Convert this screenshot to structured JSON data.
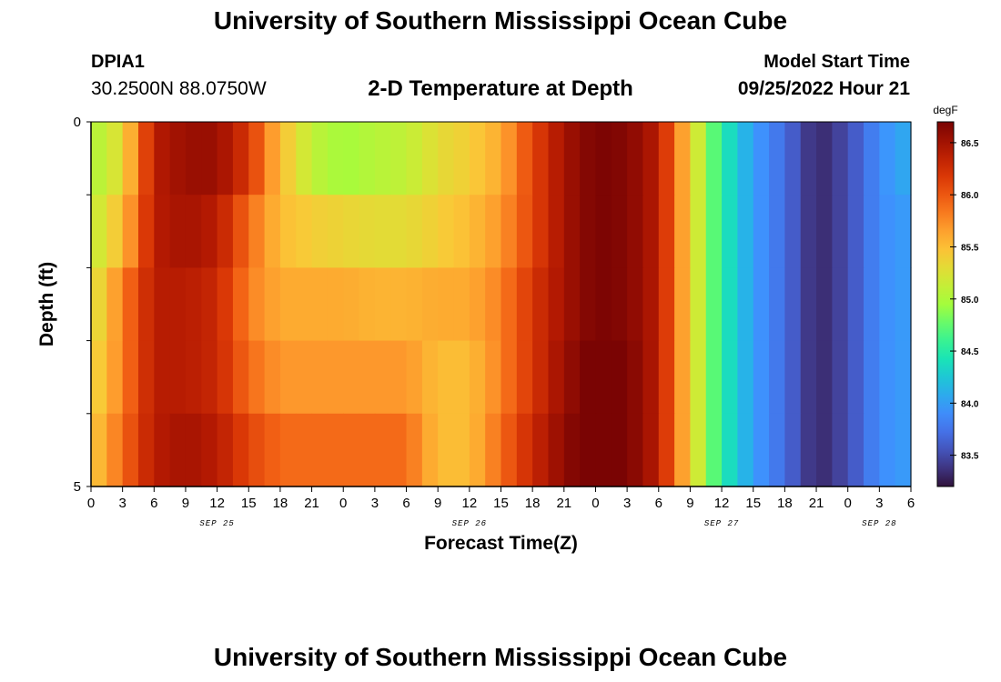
{
  "header": {
    "title": "University of Southern Mississippi Ocean Cube",
    "station_id": "DPIA1",
    "coordinates": "30.2500N  88.0750W",
    "subtitle": "2-D Temperature at Depth",
    "start_label": "Model Start Time",
    "start_value": "09/25/2022 Hour 21"
  },
  "footer": {
    "title": "University of Southern Mississippi Ocean Cube"
  },
  "chart_data": {
    "type": "heatmap",
    "title": "2-D Temperature at Depth",
    "xlabel": "Forecast Time(Z)",
    "ylabel": "Depth (ft)",
    "colorbar_label": "degF",
    "x_tick_labels": [
      "0",
      "3",
      "6",
      "9",
      "12",
      "15",
      "18",
      "21",
      "0",
      "3",
      "6",
      "9",
      "12",
      "15",
      "18",
      "21",
      "0",
      "3",
      "6",
      "9",
      "12",
      "15",
      "18",
      "21",
      "0",
      "3",
      "6"
    ],
    "x_hours_from_start": [
      0,
      3,
      6,
      9,
      12,
      15,
      18,
      21,
      24,
      27,
      30,
      33,
      36,
      39,
      42,
      45,
      48,
      51,
      54,
      57,
      60,
      63,
      66,
      69,
      72,
      75,
      78
    ],
    "date_labels": [
      {
        "label": "SEP 25",
        "hour": 12
      },
      {
        "label": "SEP 26",
        "hour": 36
      },
      {
        "label": "SEP 27",
        "hour": 60
      },
      {
        "label": "SEP 28",
        "hour": 75
      }
    ],
    "y_tick_labels": [
      "0",
      "5"
    ],
    "ylim": [
      0,
      5
    ],
    "colorbar": {
      "min": 83.2,
      "max": 86.7,
      "ticks": [
        "86.5",
        "86.0",
        "85.5",
        "85.0",
        "84.5",
        "84.0",
        "83.5"
      ],
      "colormap": "turbo"
    },
    "depth_bands": [
      0,
      1,
      2,
      3,
      4,
      5
    ],
    "time_hours": [
      0,
      3,
      6,
      9,
      12,
      15,
      18,
      21,
      24,
      27,
      30,
      33,
      36,
      39,
      42,
      45,
      48,
      51,
      54,
      57,
      60,
      63,
      66,
      69,
      72,
      75,
      78
    ],
    "values": [
      [
        85.0,
        85.3,
        86.4,
        86.55,
        86.55,
        86.2,
        85.5,
        85.1,
        84.95,
        85.05,
        85.1,
        85.3,
        85.4,
        85.6,
        86.1,
        86.5,
        86.7,
        86.65,
        86.4,
        85.4,
        84.5,
        84.0,
        83.7,
        83.3,
        83.5,
        83.9,
        84.1
      ],
      [
        85.1,
        85.5,
        86.4,
        86.5,
        86.4,
        85.9,
        85.5,
        85.4,
        85.35,
        85.3,
        85.3,
        85.4,
        85.5,
        85.7,
        86.1,
        86.5,
        86.7,
        86.65,
        86.4,
        85.4,
        84.5,
        84.0,
        83.7,
        83.3,
        83.5,
        83.9,
        84.0
      ],
      [
        85.2,
        85.8,
        86.4,
        86.4,
        86.3,
        85.8,
        85.6,
        85.6,
        85.6,
        85.55,
        85.55,
        85.6,
        85.6,
        85.8,
        86.2,
        86.5,
        86.7,
        86.65,
        86.4,
        85.4,
        84.5,
        84.0,
        83.7,
        83.3,
        83.5,
        83.9,
        84.0
      ],
      [
        85.3,
        85.8,
        86.4,
        86.4,
        86.3,
        85.9,
        85.7,
        85.7,
        85.7,
        85.7,
        85.7,
        85.5,
        85.5,
        85.8,
        86.2,
        86.55,
        86.75,
        86.7,
        86.4,
        85.4,
        84.5,
        84.0,
        83.7,
        83.3,
        83.5,
        83.9,
        84.0
      ],
      [
        85.4,
        85.9,
        86.4,
        86.5,
        86.4,
        86.1,
        85.9,
        85.9,
        85.9,
        85.9,
        85.9,
        85.5,
        85.5,
        85.9,
        86.3,
        86.6,
        86.8,
        86.7,
        86.4,
        85.4,
        84.5,
        84.0,
        83.7,
        83.3,
        83.5,
        83.9,
        84.0
      ]
    ]
  }
}
